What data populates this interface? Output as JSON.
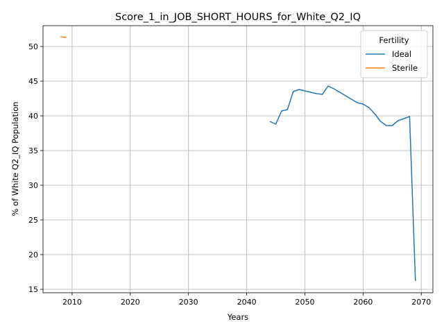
{
  "chart_data": {
    "type": "line",
    "title": "Score_1_in_JOB_SHORT_HOURS_for_White_Q2_IQ",
    "xlabel": "Years",
    "ylabel": "% of White Q2_IQ Population",
    "xlim": [
      2005,
      2072
    ],
    "ylim": [
      14.5,
      53
    ],
    "xticks": [
      2010,
      2020,
      2030,
      2040,
      2050,
      2060,
      2070
    ],
    "yticks": [
      15,
      20,
      25,
      30,
      35,
      40,
      45,
      50
    ],
    "grid": true,
    "legend": {
      "title": "Fertility",
      "position": "top-right"
    },
    "series": [
      {
        "name": "Ideal",
        "color": "#1f77b4",
        "x": [
          2044,
          2045,
          2046,
          2047,
          2048,
          2049,
          2050,
          2051,
          2052,
          2053,
          2054,
          2055,
          2056,
          2057,
          2058,
          2059,
          2060,
          2061,
          2062,
          2063,
          2064,
          2065,
          2066,
          2067,
          2068,
          2069
        ],
        "y": [
          39.2,
          38.8,
          40.7,
          40.9,
          43.5,
          43.8,
          43.6,
          43.4,
          43.2,
          43.1,
          44.3,
          43.9,
          43.4,
          42.9,
          42.4,
          41.9,
          41.7,
          41.2,
          40.3,
          39.2,
          38.6,
          38.6,
          39.3,
          39.6,
          39.9,
          16.2
        ]
      },
      {
        "name": "Sterile",
        "color": "#ff7f0e",
        "x": [
          2008,
          2009
        ],
        "y": [
          51.4,
          51.3
        ]
      }
    ]
  }
}
